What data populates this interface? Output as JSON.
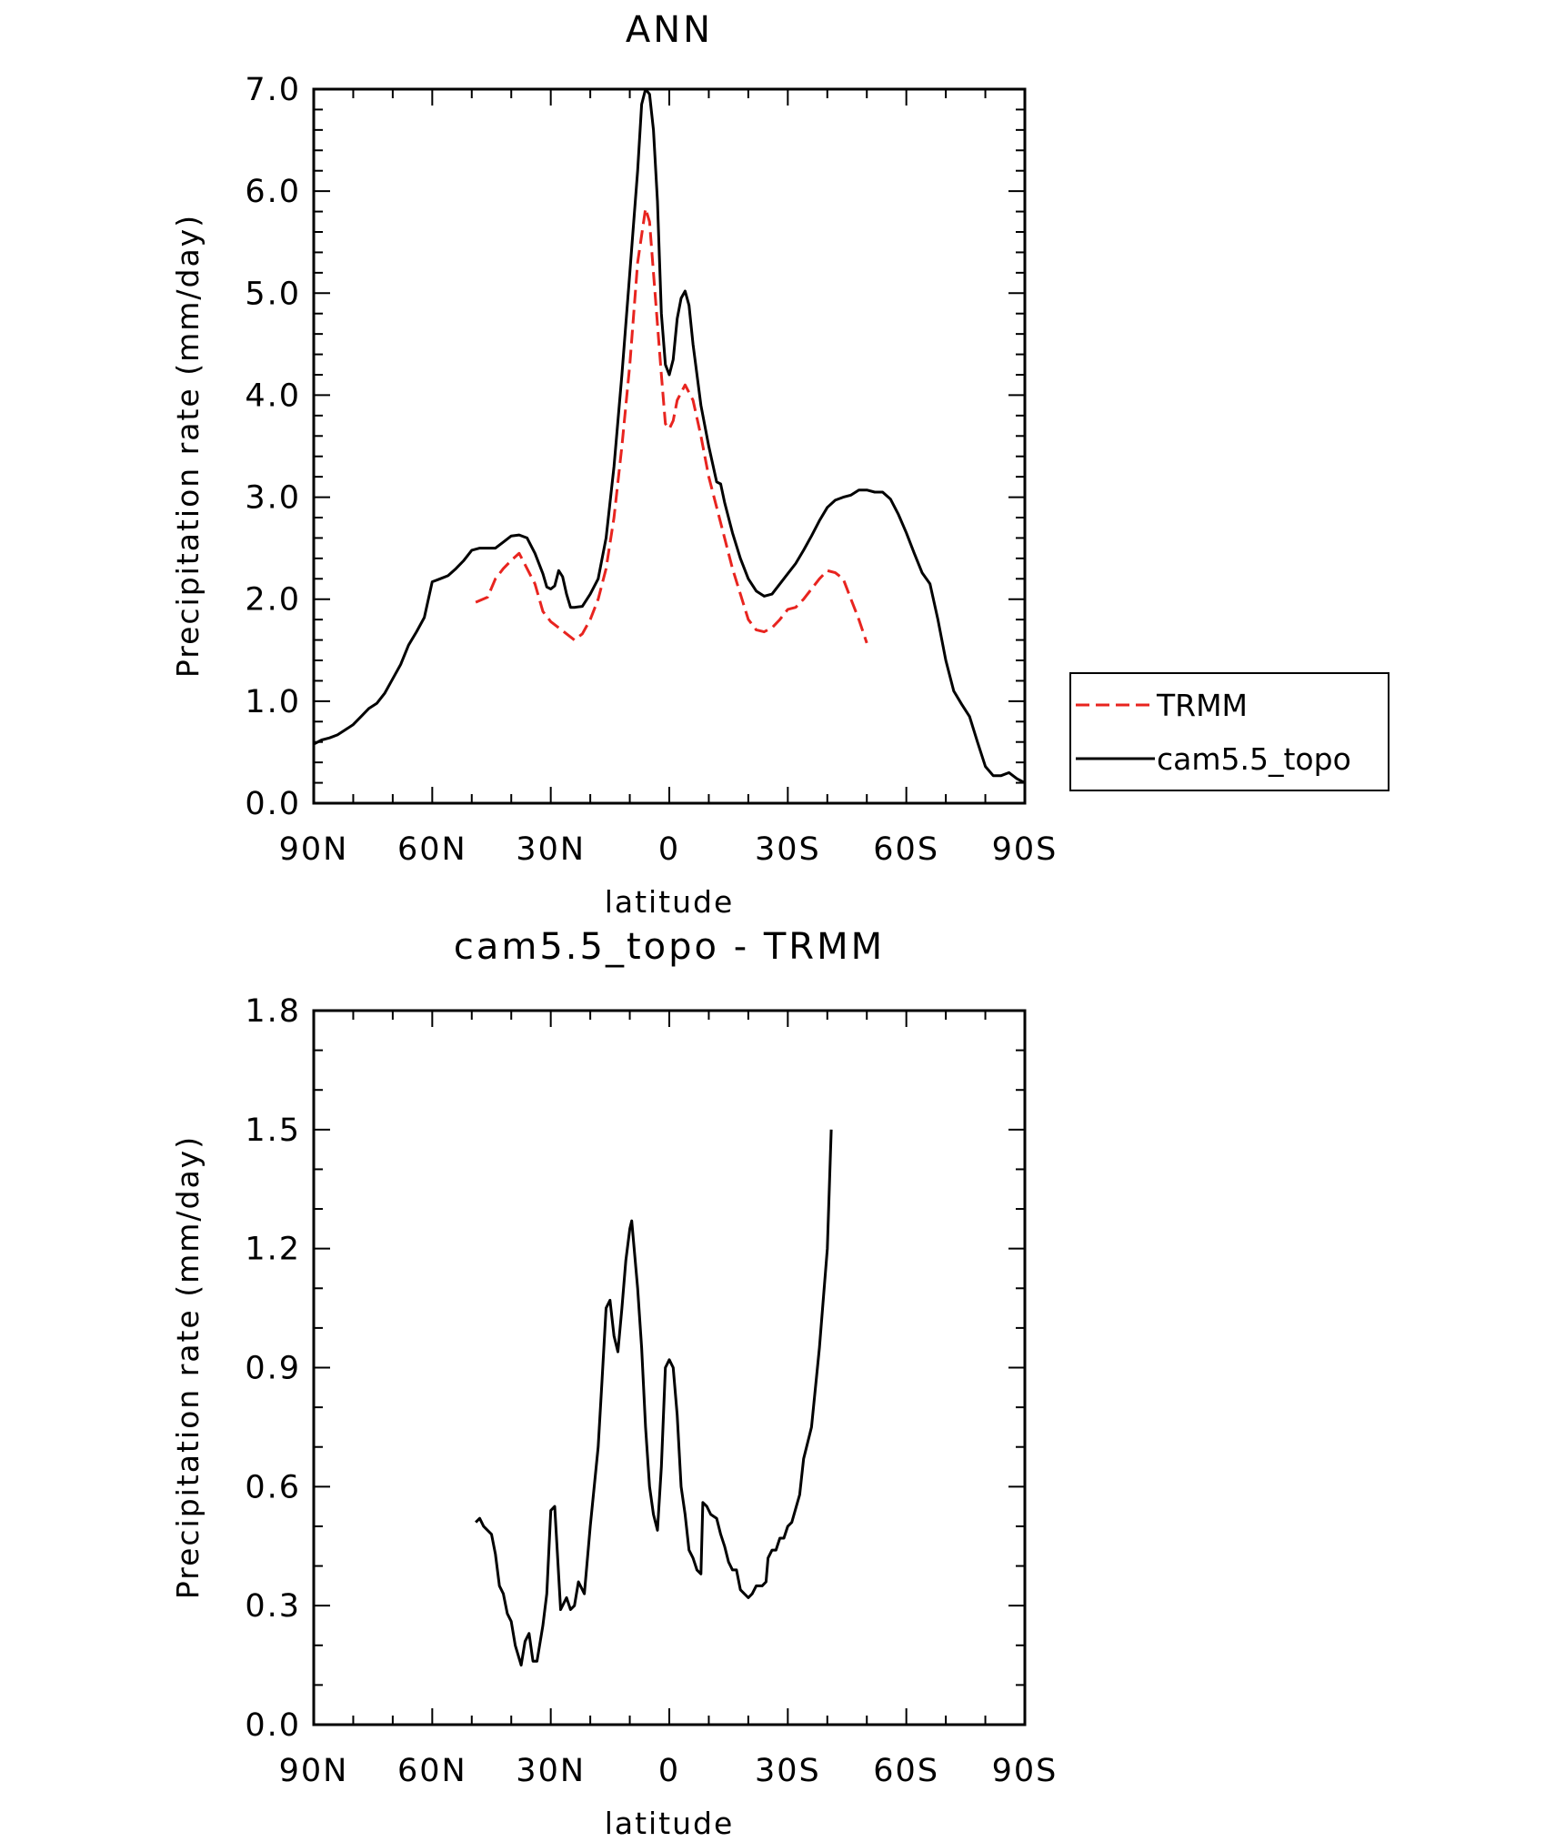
{
  "chart_data": [
    {
      "type": "line",
      "title": "ANN",
      "xlabel": "latitude",
      "ylabel": "Precipitation rate (mm/day)",
      "xlim": [
        90,
        -90
      ],
      "ylim": [
        0,
        7
      ],
      "x_ticks": [
        {
          "value": 90,
          "label": "90N"
        },
        {
          "value": 60,
          "label": "60N"
        },
        {
          "value": 30,
          "label": "30N"
        },
        {
          "value": 0,
          "label": "0"
        },
        {
          "value": -30,
          "label": "30S"
        },
        {
          "value": -60,
          "label": "60S"
        },
        {
          "value": -90,
          "label": "90S"
        }
      ],
      "y_ticks": [
        {
          "value": 0,
          "label": "0.0"
        },
        {
          "value": 1,
          "label": "1.0"
        },
        {
          "value": 2,
          "label": "2.0"
        },
        {
          "value": 3,
          "label": "3.0"
        },
        {
          "value": 4,
          "label": "4.0"
        },
        {
          "value": 5,
          "label": "5.0"
        },
        {
          "value": 6,
          "label": "6.0"
        },
        {
          "value": 7,
          "label": "7.0"
        }
      ],
      "legend_position": "right",
      "series": [
        {
          "name": "TRMM",
          "color": "#e8241f",
          "dash": "dashed",
          "points": [
            [
              49,
              1.97
            ],
            [
              46,
              2.02
            ],
            [
              44,
              2.2
            ],
            [
              42,
              2.3
            ],
            [
              40,
              2.38
            ],
            [
              38,
              2.45
            ],
            [
              36,
              2.3
            ],
            [
              34,
              2.15
            ],
            [
              32,
              1.88
            ],
            [
              30,
              1.78
            ],
            [
              28,
              1.72
            ],
            [
              26,
              1.66
            ],
            [
              24,
              1.6
            ],
            [
              22,
              1.66
            ],
            [
              20,
              1.8
            ],
            [
              18,
              2.0
            ],
            [
              16,
              2.3
            ],
            [
              14,
              2.8
            ],
            [
              12,
              3.5
            ],
            [
              10,
              4.3
            ],
            [
              8,
              5.3
            ],
            [
              6,
              5.83
            ],
            [
              5,
              5.7
            ],
            [
              4,
              5.2
            ],
            [
              2,
              4.2
            ],
            [
              1,
              3.72
            ],
            [
              0,
              3.67
            ],
            [
              -1,
              3.75
            ],
            [
              -2,
              3.95
            ],
            [
              -4,
              4.1
            ],
            [
              -6,
              3.95
            ],
            [
              -8,
              3.6
            ],
            [
              -10,
              3.2
            ],
            [
              -12,
              2.9
            ],
            [
              -14,
              2.6
            ],
            [
              -16,
              2.3
            ],
            [
              -18,
              2.05
            ],
            [
              -20,
              1.8
            ],
            [
              -22,
              1.7
            ],
            [
              -24,
              1.68
            ],
            [
              -26,
              1.72
            ],
            [
              -28,
              1.8
            ],
            [
              -30,
              1.9
            ],
            [
              -32,
              1.92
            ],
            [
              -34,
              2.0
            ],
            [
              -36,
              2.1
            ],
            [
              -38,
              2.2
            ],
            [
              -40,
              2.28
            ],
            [
              -42,
              2.26
            ],
            [
              -44,
              2.2
            ],
            [
              -46,
              2.0
            ],
            [
              -48,
              1.8
            ],
            [
              -50,
              1.57
            ]
          ]
        },
        {
          "name": "cam5.5_topo",
          "color": "#000000",
          "dash": "solid",
          "points": [
            [
              90,
              0.58
            ],
            [
              88,
              0.62
            ],
            [
              86,
              0.64
            ],
            [
              84,
              0.67
            ],
            [
              82,
              0.72
            ],
            [
              80,
              0.77
            ],
            [
              78,
              0.85
            ],
            [
              76,
              0.93
            ],
            [
              74,
              0.98
            ],
            [
              72,
              1.08
            ],
            [
              70,
              1.22
            ],
            [
              68,
              1.36
            ],
            [
              66,
              1.55
            ],
            [
              64,
              1.68
            ],
            [
              62,
              1.82
            ],
            [
              60,
              2.17
            ],
            [
              58,
              2.2
            ],
            [
              56,
              2.23
            ],
            [
              54,
              2.3
            ],
            [
              52,
              2.38
            ],
            [
              50,
              2.48
            ],
            [
              48,
              2.5
            ],
            [
              46,
              2.5
            ],
            [
              44,
              2.5
            ],
            [
              42,
              2.56
            ],
            [
              40,
              2.62
            ],
            [
              38,
              2.63
            ],
            [
              36,
              2.6
            ],
            [
              34,
              2.45
            ],
            [
              32,
              2.25
            ],
            [
              31,
              2.12
            ],
            [
              30,
              2.1
            ],
            [
              29,
              2.13
            ],
            [
              28,
              2.28
            ],
            [
              27,
              2.22
            ],
            [
              26,
              2.05
            ],
            [
              25,
              1.92
            ],
            [
              24,
              1.92
            ],
            [
              22,
              1.93
            ],
            [
              20,
              2.05
            ],
            [
              18,
              2.2
            ],
            [
              16,
              2.6
            ],
            [
              14,
              3.3
            ],
            [
              12,
              4.2
            ],
            [
              10,
              5.2
            ],
            [
              8,
              6.2
            ],
            [
              7,
              6.85
            ],
            [
              6,
              7.0
            ],
            [
              5,
              6.95
            ],
            [
              4,
              6.6
            ],
            [
              3,
              5.9
            ],
            [
              2,
              4.8
            ],
            [
              1,
              4.3
            ],
            [
              0,
              4.2
            ],
            [
              -1,
              4.35
            ],
            [
              -2,
              4.75
            ],
            [
              -3,
              4.95
            ],
            [
              -4,
              5.02
            ],
            [
              -5,
              4.88
            ],
            [
              -6,
              4.5
            ],
            [
              -8,
              3.9
            ],
            [
              -10,
              3.5
            ],
            [
              -12,
              3.15
            ],
            [
              -13,
              3.13
            ],
            [
              -14,
              2.95
            ],
            [
              -16,
              2.65
            ],
            [
              -18,
              2.4
            ],
            [
              -20,
              2.2
            ],
            [
              -22,
              2.08
            ],
            [
              -24,
              2.03
            ],
            [
              -26,
              2.05
            ],
            [
              -28,
              2.15
            ],
            [
              -30,
              2.25
            ],
            [
              -32,
              2.35
            ],
            [
              -34,
              2.48
            ],
            [
              -36,
              2.62
            ],
            [
              -38,
              2.77
            ],
            [
              -40,
              2.9
            ],
            [
              -42,
              2.97
            ],
            [
              -44,
              3.0
            ],
            [
              -46,
              3.02
            ],
            [
              -48,
              3.07
            ],
            [
              -50,
              3.07
            ],
            [
              -52,
              3.05
            ],
            [
              -54,
              3.05
            ],
            [
              -56,
              2.98
            ],
            [
              -58,
              2.83
            ],
            [
              -60,
              2.65
            ],
            [
              -62,
              2.45
            ],
            [
              -64,
              2.26
            ],
            [
              -66,
              2.15
            ],
            [
              -68,
              1.8
            ],
            [
              -70,
              1.4
            ],
            [
              -72,
              1.1
            ],
            [
              -74,
              0.97
            ],
            [
              -76,
              0.85
            ],
            [
              -78,
              0.6
            ],
            [
              -80,
              0.36
            ],
            [
              -82,
              0.27
            ],
            [
              -84,
              0.27
            ],
            [
              -86,
              0.3
            ],
            [
              -88,
              0.24
            ],
            [
              -90,
              0.2
            ]
          ]
        }
      ]
    },
    {
      "type": "line",
      "title": "cam5.5_topo - TRMM",
      "xlabel": "latitude",
      "ylabel": "Precipitation rate (mm/day)",
      "xlim": [
        90,
        -90
      ],
      "ylim": [
        0,
        1.8
      ],
      "x_ticks": [
        {
          "value": 90,
          "label": "90N"
        },
        {
          "value": 60,
          "label": "60N"
        },
        {
          "value": 30,
          "label": "30N"
        },
        {
          "value": 0,
          "label": "0"
        },
        {
          "value": -30,
          "label": "30S"
        },
        {
          "value": -60,
          "label": "60S"
        },
        {
          "value": -90,
          "label": "90S"
        }
      ],
      "y_ticks": [
        {
          "value": 0,
          "label": "0.0"
        },
        {
          "value": 0.3,
          "label": "0.3"
        },
        {
          "value": 0.6,
          "label": "0.6"
        },
        {
          "value": 0.9,
          "label": "0.9"
        },
        {
          "value": 1.2,
          "label": "1.2"
        },
        {
          "value": 1.5,
          "label": "1.5"
        },
        {
          "value": 1.8,
          "label": "1.8"
        }
      ],
      "series": [
        {
          "name": "",
          "color": "#000000",
          "dash": "solid",
          "points": [
            [
              49,
              0.51
            ],
            [
              48,
              0.52
            ],
            [
              47,
              0.5
            ],
            [
              45,
              0.48
            ],
            [
              44,
              0.43
            ],
            [
              43,
              0.35
            ],
            [
              42,
              0.33
            ],
            [
              41,
              0.28
            ],
            [
              40,
              0.26
            ],
            [
              39,
              0.2
            ],
            [
              37.5,
              0.15
            ],
            [
              36.5,
              0.21
            ],
            [
              35.5,
              0.23
            ],
            [
              34.5,
              0.16
            ],
            [
              33.5,
              0.16
            ],
            [
              32,
              0.25
            ],
            [
              31,
              0.33
            ],
            [
              30,
              0.54
            ],
            [
              29,
              0.55
            ],
            [
              27.5,
              0.29
            ],
            [
              26,
              0.32
            ],
            [
              25,
              0.29
            ],
            [
              24,
              0.3
            ],
            [
              23,
              0.36
            ],
            [
              21.5,
              0.33
            ],
            [
              20,
              0.5
            ],
            [
              18,
              0.7
            ],
            [
              17,
              0.87
            ],
            [
              16,
              1.05
            ],
            [
              15,
              1.07
            ],
            [
              14,
              0.98
            ],
            [
              13,
              0.94
            ],
            [
              12,
              1.05
            ],
            [
              11,
              1.17
            ],
            [
              10,
              1.25
            ],
            [
              9.5,
              1.27
            ],
            [
              8,
              1.1
            ],
            [
              7,
              0.95
            ],
            [
              6,
              0.75
            ],
            [
              5,
              0.6
            ],
            [
              4,
              0.53
            ],
            [
              3,
              0.49
            ],
            [
              2,
              0.65
            ],
            [
              1,
              0.9
            ],
            [
              0,
              0.92
            ],
            [
              -1,
              0.9
            ],
            [
              -2,
              0.78
            ],
            [
              -3,
              0.6
            ],
            [
              -4,
              0.53
            ],
            [
              -5,
              0.44
            ],
            [
              -6,
              0.42
            ],
            [
              -7,
              0.39
            ],
            [
              -8,
              0.38
            ],
            [
              -8.5,
              0.56
            ],
            [
              -9.5,
              0.55
            ],
            [
              -10.5,
              0.53
            ],
            [
              -12,
              0.52
            ],
            [
              -13,
              0.48
            ],
            [
              -14,
              0.45
            ],
            [
              -15,
              0.41
            ],
            [
              -16,
              0.39
            ],
            [
              -17,
              0.39
            ],
            [
              -18,
              0.34
            ],
            [
              -19,
              0.33
            ],
            [
              -20,
              0.32
            ],
            [
              -21,
              0.33
            ],
            [
              -22,
              0.35
            ],
            [
              -23.5,
              0.35
            ],
            [
              -24.5,
              0.36
            ],
            [
              -25,
              0.42
            ],
            [
              -26,
              0.44
            ],
            [
              -27,
              0.44
            ],
            [
              -28,
              0.47
            ],
            [
              -29,
              0.47
            ],
            [
              -30,
              0.5
            ],
            [
              -31,
              0.51
            ],
            [
              -33,
              0.58
            ],
            [
              -34,
              0.67
            ],
            [
              -36,
              0.75
            ],
            [
              -38,
              0.95
            ],
            [
              -40,
              1.2
            ],
            [
              -41,
              1.5
            ]
          ]
        }
      ]
    }
  ]
}
